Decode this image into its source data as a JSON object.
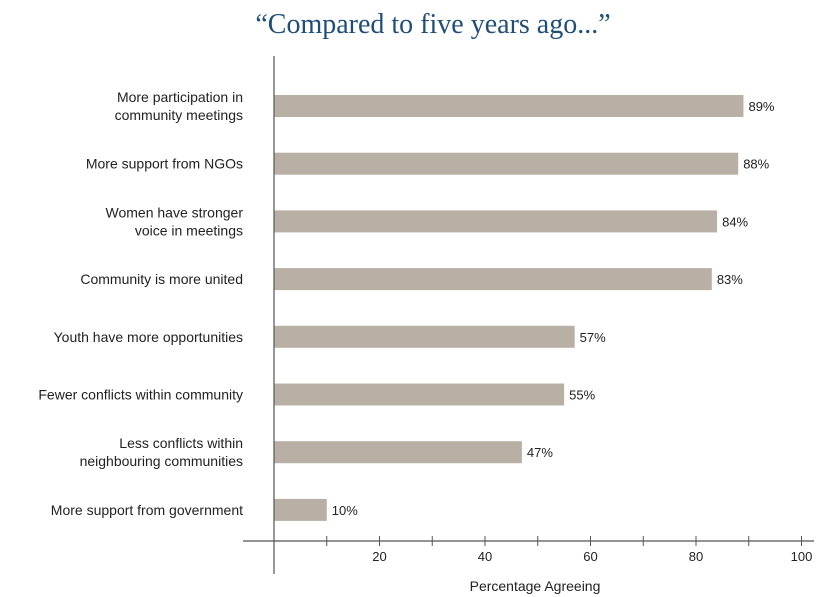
{
  "chart_data": {
    "type": "bar",
    "orientation": "horizontal",
    "title": "“Compared to five years ago...”",
    "xlabel": "Percentage Agreeing",
    "ylabel": "",
    "xlim": [
      0,
      100
    ],
    "x_ticks": [
      0,
      10,
      20,
      30,
      40,
      50,
      60,
      70,
      80,
      90,
      100
    ],
    "x_tick_labels": [
      "20",
      "40",
      "60",
      "80",
      "100"
    ],
    "x_tick_label_values": [
      20,
      40,
      60,
      80,
      100
    ],
    "grid": false,
    "bar_color": "#b9b0a5",
    "title_color": "#1f4e79",
    "categories": [
      [
        "More participation in",
        "community meetings"
      ],
      [
        "More support from NGOs"
      ],
      [
        "Women have stronger",
        "voice in meetings"
      ],
      [
        "Community is more united"
      ],
      [
        "Youth have more opportunities"
      ],
      [
        "Fewer conflicts within community"
      ],
      [
        "Less conflicts within",
        "neighbouring communities"
      ],
      [
        "More support from government"
      ]
    ],
    "values": [
      89,
      88,
      84,
      83,
      57,
      55,
      47,
      10
    ],
    "value_labels": [
      "89%",
      "88%",
      "84%",
      "83%",
      "57%",
      "55%",
      "47%",
      "10%"
    ]
  }
}
